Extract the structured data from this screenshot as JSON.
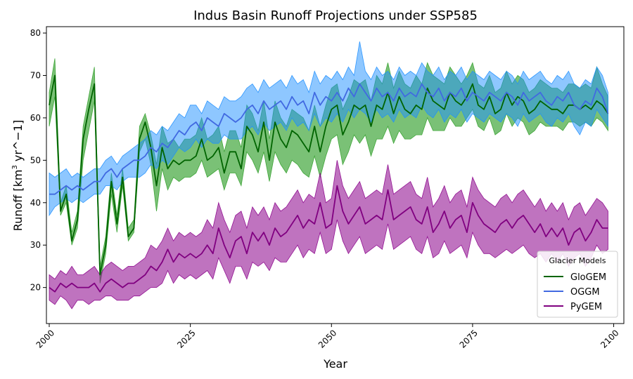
{
  "chart_data": {
    "type": "line",
    "title": "Indus Basin Runoff Projections under SSP585",
    "xlabel": "Year",
    "ylabel_main": "Runoff [km",
    "ylabel_sup": "3",
    "ylabel_rest": " yr^−1]",
    "xlim": [
      1999.5,
      2101.8
    ],
    "ylim": [
      11.5,
      81.5
    ],
    "xticks": [
      2000,
      2025,
      2050,
      2075,
      2100
    ],
    "yticks": [
      20,
      30,
      40,
      50,
      60,
      70,
      80
    ],
    "legend": {
      "title": "Glacier Models",
      "position": "lower-right"
    },
    "x": [
      2000,
      2001,
      2002,
      2003,
      2004,
      2005,
      2006,
      2007,
      2008,
      2009,
      2010,
      2011,
      2012,
      2013,
      2014,
      2015,
      2016,
      2017,
      2018,
      2019,
      2020,
      2021,
      2022,
      2023,
      2024,
      2025,
      2026,
      2027,
      2028,
      2029,
      2030,
      2031,
      2032,
      2033,
      2034,
      2035,
      2036,
      2037,
      2038,
      2039,
      2040,
      2041,
      2042,
      2043,
      2044,
      2045,
      2046,
      2047,
      2048,
      2049,
      2050,
      2051,
      2052,
      2053,
      2054,
      2055,
      2056,
      2057,
      2058,
      2059,
      2060,
      2061,
      2062,
      2063,
      2064,
      2065,
      2066,
      2067,
      2068,
      2069,
      2070,
      2071,
      2072,
      2073,
      2074,
      2075,
      2076,
      2077,
      2078,
      2079,
      2080,
      2081,
      2082,
      2083,
      2084,
      2085,
      2086,
      2087,
      2088,
      2089,
      2090,
      2091,
      2092,
      2093,
      2094,
      2095,
      2096,
      2097,
      2098,
      2099
    ],
    "series": [
      {
        "name": "GloGEM",
        "color": "#006400",
        "fill": "#33a02c",
        "fill_opacity": 0.65,
        "values": [
          63,
          70,
          38,
          42,
          31,
          36,
          55,
          62,
          68,
          23,
          30,
          45,
          35,
          46,
          32,
          34,
          55,
          59,
          53,
          44,
          53,
          48,
          50,
          49,
          50,
          50,
          51,
          55,
          50,
          51,
          53,
          47,
          52,
          52,
          48,
          58,
          56,
          52,
          59,
          50,
          59,
          55,
          53,
          57,
          56,
          54,
          52,
          58,
          52,
          58,
          62,
          63,
          56,
          59,
          63,
          62,
          63,
          58,
          63,
          62,
          66,
          61,
          65,
          62,
          61,
          63,
          62,
          67,
          64,
          63,
          62,
          66,
          64,
          63,
          65,
          68,
          63,
          62,
          65,
          61,
          62,
          66,
          63,
          65,
          64,
          61,
          62,
          64,
          63,
          62,
          62,
          61,
          63,
          63,
          62,
          63,
          62,
          64,
          63,
          61
        ],
        "lower": [
          58,
          65,
          37,
          40,
          30,
          34,
          50,
          57,
          64,
          21,
          28,
          42,
          33,
          44,
          31,
          33,
          52,
          55,
          49,
          38,
          48,
          43,
          46,
          45,
          46,
          46,
          47,
          50,
          46,
          47,
          48,
          43,
          47,
          47,
          44,
          52,
          50,
          47,
          52,
          45,
          52,
          49,
          47,
          50,
          49,
          47,
          46,
          51,
          46,
          51,
          55,
          56,
          49,
          52,
          56,
          54,
          56,
          51,
          55,
          55,
          58,
          54,
          57,
          55,
          55,
          56,
          56,
          60,
          57,
          57,
          57,
          60,
          58,
          58,
          60,
          62,
          58,
          57,
          60,
          56,
          57,
          61,
          58,
          60,
          59,
          56,
          57,
          59,
          58,
          58,
          58,
          57,
          59,
          59,
          58,
          59,
          58,
          60,
          59,
          57
        ],
        "upper": [
          66,
          74,
          40,
          44,
          33,
          38,
          58,
          65,
          72,
          25,
          32,
          47,
          37,
          48,
          34,
          36,
          58,
          61,
          56,
          49,
          58,
          54,
          55,
          53,
          55,
          55,
          56,
          60,
          55,
          56,
          58,
          52,
          57,
          57,
          53,
          63,
          61,
          57,
          64,
          55,
          64,
          60,
          58,
          62,
          61,
          60,
          57,
          63,
          58,
          63,
          67,
          68,
          62,
          65,
          69,
          68,
          69,
          64,
          70,
          68,
          73,
          67,
          71,
          68,
          67,
          70,
          68,
          73,
          70,
          69,
          68,
          72,
          70,
          68,
          70,
          73,
          68,
          67,
          70,
          66,
          67,
          71,
          68,
          70,
          69,
          66,
          67,
          69,
          68,
          67,
          67,
          66,
          68,
          68,
          67,
          68,
          67,
          72,
          68,
          65
        ]
      },
      {
        "name": "OGGM",
        "color": "#4169e1",
        "fill": "#1e8fff",
        "fill_opacity": 0.5,
        "values": [
          42,
          42,
          43,
          44,
          43,
          44,
          43,
          44,
          45,
          45,
          47,
          48,
          46,
          48,
          49,
          50,
          50,
          51,
          53,
          52,
          54,
          53,
          55,
          57,
          56,
          58,
          59,
          57,
          60,
          59,
          58,
          61,
          60,
          59,
          60,
          62,
          63,
          61,
          64,
          62,
          63,
          64,
          62,
          65,
          63,
          64,
          61,
          66,
          63,
          65,
          64,
          66,
          64,
          67,
          65,
          68,
          66,
          64,
          67,
          65,
          66,
          64,
          67,
          65,
          66,
          65,
          68,
          66,
          65,
          67,
          64,
          66,
          65,
          67,
          64,
          66,
          65,
          64,
          66,
          65,
          64,
          66,
          65,
          63,
          66,
          64,
          65,
          66,
          64,
          63,
          65,
          64,
          66,
          63,
          62,
          64,
          63,
          67,
          65,
          61
        ],
        "lower": [
          37,
          39,
          40,
          41,
          40,
          41,
          40,
          41,
          42,
          42,
          44,
          44,
          43,
          45,
          46,
          46,
          46,
          47,
          49,
          48,
          50,
          49,
          51,
          53,
          52,
          53,
          55,
          53,
          55,
          54,
          54,
          56,
          55,
          55,
          55,
          57,
          58,
          56,
          59,
          57,
          58,
          59,
          57,
          60,
          58,
          59,
          57,
          61,
          58,
          60,
          59,
          61,
          59,
          62,
          60,
          62,
          61,
          59,
          62,
          60,
          61,
          59,
          62,
          60,
          61,
          60,
          63,
          61,
          60,
          62,
          59,
          61,
          60,
          62,
          59,
          61,
          60,
          59,
          61,
          60,
          59,
          61,
          60,
          58,
          61,
          59,
          60,
          61,
          59,
          58,
          60,
          59,
          61,
          58,
          56,
          59,
          58,
          62,
          60,
          58
        ],
        "upper": [
          47,
          46,
          47,
          48,
          46,
          47,
          46,
          47,
          48,
          48,
          50,
          51,
          49,
          51,
          52,
          53,
          54,
          55,
          57,
          56,
          58,
          57,
          59,
          61,
          60,
          63,
          63,
          61,
          64,
          63,
          62,
          65,
          64,
          64,
          65,
          67,
          68,
          66,
          69,
          67,
          68,
          69,
          67,
          70,
          68,
          69,
          66,
          71,
          68,
          70,
          69,
          71,
          69,
          72,
          70,
          78,
          71,
          69,
          72,
          70,
          71,
          69,
          72,
          70,
          71,
          70,
          73,
          71,
          70,
          72,
          69,
          71,
          70,
          72,
          69,
          71,
          70,
          69,
          71,
          70,
          69,
          71,
          70,
          68,
          71,
          69,
          70,
          71,
          69,
          68,
          70,
          69,
          71,
          68,
          67,
          69,
          68,
          72,
          70,
          66
        ]
      },
      {
        "name": "PyGEM",
        "color": "#800080",
        "fill": "#8b008b",
        "fill_opacity": 0.55,
        "values": [
          20,
          19,
          21,
          20,
          21,
          20,
          20,
          20,
          21,
          19,
          21,
          22,
          21,
          20,
          21,
          21,
          22,
          23,
          25,
          24,
          26,
          29,
          26,
          28,
          27,
          28,
          27,
          28,
          30,
          28,
          34,
          30,
          27,
          31,
          32,
          28,
          33,
          31,
          33,
          30,
          34,
          32,
          33,
          35,
          37,
          34,
          36,
          35,
          40,
          34,
          35,
          44,
          38,
          35,
          37,
          39,
          35,
          36,
          37,
          36,
          43,
          36,
          37,
          38,
          39,
          36,
          35,
          39,
          33,
          35,
          38,
          34,
          36,
          37,
          33,
          40,
          37,
          35,
          34,
          33,
          35,
          36,
          34,
          36,
          37,
          35,
          33,
          35,
          32,
          34,
          32,
          34,
          30,
          33,
          34,
          31,
          33,
          36,
          34,
          34
        ],
        "lower": [
          17,
          16,
          18,
          17,
          15,
          17,
          17,
          16,
          17,
          17,
          18,
          18,
          17,
          17,
          17,
          18,
          18,
          19,
          20,
          20,
          21,
          24,
          21,
          23,
          22,
          23,
          22,
          23,
          24,
          22,
          27,
          24,
          21,
          25,
          25,
          22,
          26,
          25,
          26,
          24,
          27,
          26,
          26,
          28,
          30,
          27,
          29,
          28,
          33,
          28,
          29,
          36,
          31,
          28,
          30,
          32,
          28,
          29,
          30,
          29,
          35,
          29,
          30,
          31,
          32,
          29,
          28,
          32,
          27,
          28,
          31,
          28,
          29,
          30,
          27,
          33,
          30,
          28,
          28,
          27,
          28,
          29,
          28,
          29,
          30,
          28,
          27,
          28,
          26,
          28,
          26,
          28,
          25,
          27,
          28,
          25,
          27,
          30,
          28,
          29
        ],
        "upper": [
          23,
          22,
          24,
          23,
          25,
          23,
          23,
          24,
          25,
          23,
          25,
          26,
          25,
          24,
          25,
          25,
          26,
          27,
          30,
          29,
          31,
          34,
          31,
          33,
          32,
          33,
          32,
          33,
          36,
          34,
          40,
          36,
          33,
          37,
          38,
          34,
          39,
          37,
          39,
          36,
          40,
          38,
          39,
          41,
          43,
          40,
          42,
          41,
          47,
          40,
          41,
          50,
          44,
          41,
          43,
          45,
          41,
          42,
          43,
          42,
          49,
          42,
          43,
          44,
          45,
          42,
          41,
          46,
          39,
          41,
          44,
          40,
          42,
          43,
          39,
          46,
          43,
          41,
          40,
          39,
          41,
          42,
          40,
          42,
          43,
          41,
          39,
          41,
          38,
          40,
          38,
          40,
          36,
          39,
          40,
          37,
          39,
          41,
          40,
          38
        ]
      }
    ]
  }
}
